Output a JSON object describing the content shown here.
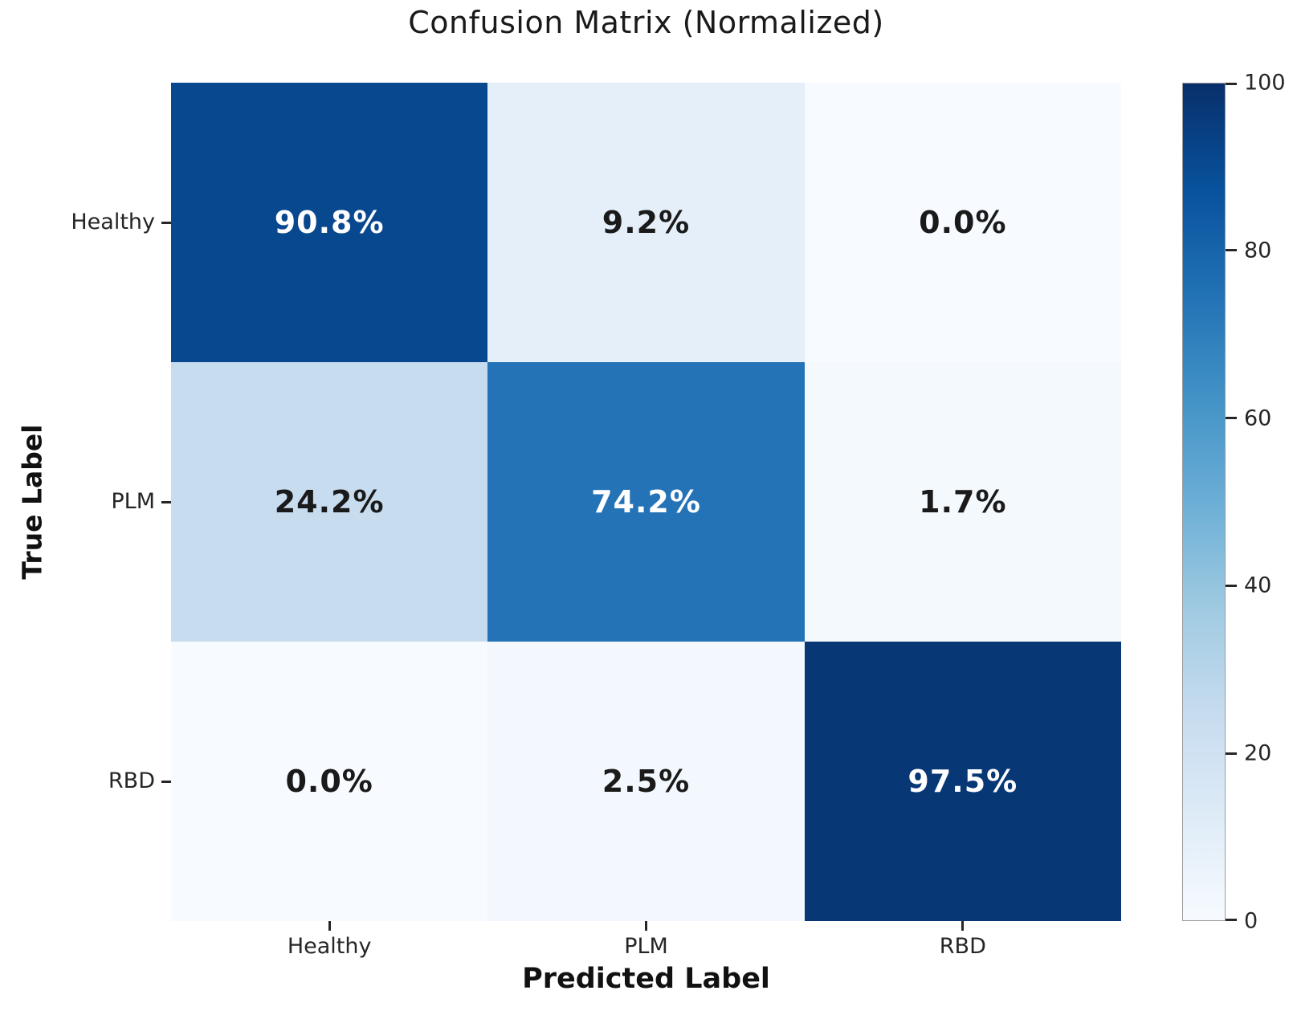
{
  "chart_data": {
    "type": "heatmap",
    "title": "Confusion Matrix (Normalized)",
    "xlabel": "Predicted Label",
    "ylabel": "True Label",
    "x_categories": [
      "Healthy",
      "PLM",
      "RBD"
    ],
    "y_categories": [
      "Healthy",
      "PLM",
      "RBD"
    ],
    "values_percent": [
      [
        90.8,
        9.2,
        0.0
      ],
      [
        24.2,
        74.2,
        1.7
      ],
      [
        0.0,
        2.5,
        97.5
      ]
    ],
    "cell_labels": [
      [
        "90.8%",
        "9.2%",
        "0.0%"
      ],
      [
        "24.2%",
        "74.2%",
        "1.7%"
      ],
      [
        "0.0%",
        "2.5%",
        "97.5%"
      ]
    ],
    "colorbar": {
      "min": 0,
      "max": 100,
      "ticks": [
        0,
        20,
        40,
        60,
        80,
        100
      ]
    },
    "colormap": {
      "name": "Blues",
      "stops": [
        {
          "t": 0.0,
          "color": "#f7fbff"
        },
        {
          "t": 0.125,
          "color": "#deebf7"
        },
        {
          "t": 0.25,
          "color": "#c6dbef"
        },
        {
          "t": 0.375,
          "color": "#9ecae1"
        },
        {
          "t": 0.5,
          "color": "#6baed6"
        },
        {
          "t": 0.625,
          "color": "#4292c6"
        },
        {
          "t": 0.75,
          "color": "#2171b5"
        },
        {
          "t": 0.875,
          "color": "#08519c"
        },
        {
          "t": 1.0,
          "color": "#08306b"
        }
      ]
    },
    "annotation_text_threshold": 50,
    "annotation_colors": {
      "light_cell_text": "#1a1a1a",
      "dark_cell_text": "#ffffff"
    },
    "legend_position": "right",
    "grid": false
  }
}
